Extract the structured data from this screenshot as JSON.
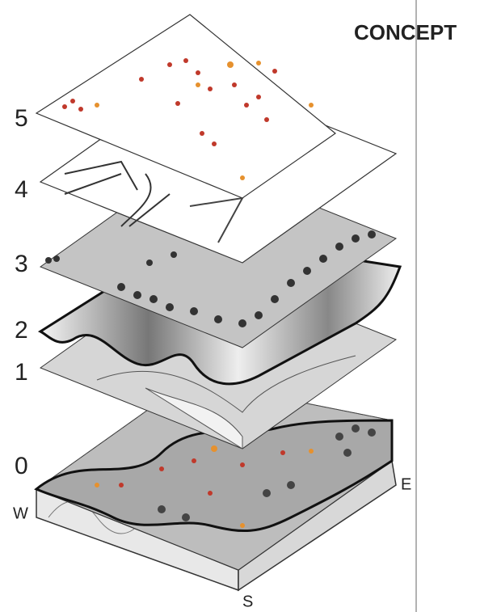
{
  "title": "CONCEPT",
  "layers": [
    {
      "label": "5"
    },
    {
      "label": "4"
    },
    {
      "label": "3"
    },
    {
      "label": "2"
    },
    {
      "label": "1"
    },
    {
      "label": "0"
    }
  ],
  "directions": {
    "west": "W",
    "east": "E",
    "south": "S"
  }
}
